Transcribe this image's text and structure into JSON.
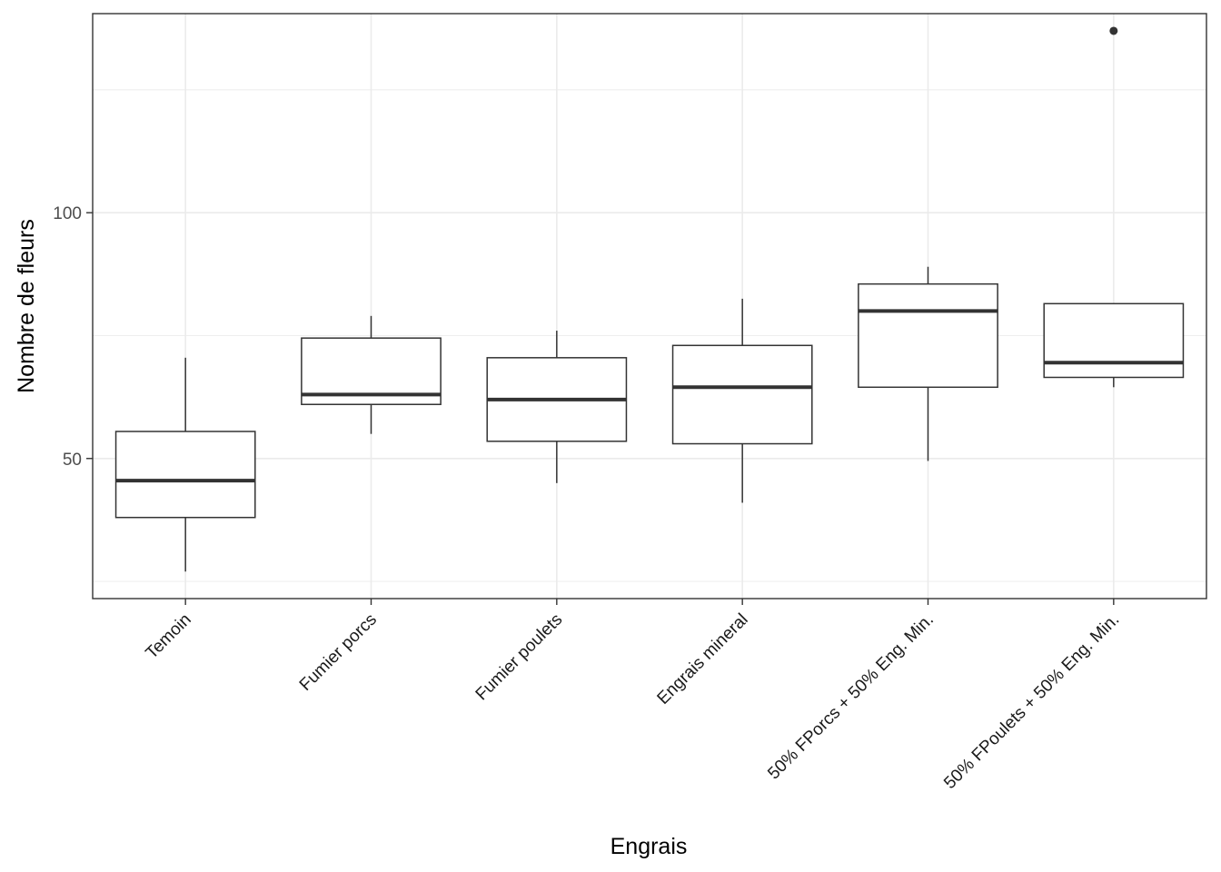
{
  "chart_data": {
    "type": "boxplot",
    "xlabel": "Engrais",
    "ylabel": "Nombre de fleurs",
    "ylim": [
      21.5,
      140.5
    ],
    "yticks": [
      50,
      100
    ],
    "grid": true,
    "categories": [
      "Temoin",
      "Fumier porcs",
      "Fumier poulets",
      "Engrais mineral",
      "50% FPorcs + 50% Eng. Min.",
      "50% FPoulets + 50% Eng. Min."
    ],
    "boxes": [
      {
        "category": "Temoin",
        "whisker_low": 27,
        "q1": 38,
        "median": 45.5,
        "q3": 55.5,
        "whisker_high": 70.5,
        "outliers": []
      },
      {
        "category": "Fumier porcs",
        "whisker_low": 55,
        "q1": 61,
        "median": 63,
        "q3": 74.5,
        "whisker_high": 79,
        "outliers": []
      },
      {
        "category": "Fumier poulets",
        "whisker_low": 45,
        "q1": 53.5,
        "median": 62,
        "q3": 70.5,
        "whisker_high": 76,
        "outliers": []
      },
      {
        "category": "Engrais mineral",
        "whisker_low": 41,
        "q1": 53,
        "median": 64.5,
        "q3": 73,
        "whisker_high": 82.5,
        "outliers": []
      },
      {
        "category": "50% FPorcs + 50% Eng. Min.",
        "whisker_low": 49.5,
        "q1": 64.5,
        "median": 80,
        "q3": 85.5,
        "whisker_high": 89,
        "outliers": []
      },
      {
        "category": "50% FPoulets + 50% Eng. Min.",
        "whisker_low": 64.5,
        "q1": 66.5,
        "median": 69.5,
        "q3": 81.5,
        "whisker_high": 81.5,
        "outliers": [
          137
        ]
      }
    ],
    "colors": {
      "box_line": "#333333",
      "grid": "#ebebeb",
      "panel_border": "#333333",
      "background": "#ffffff"
    }
  }
}
